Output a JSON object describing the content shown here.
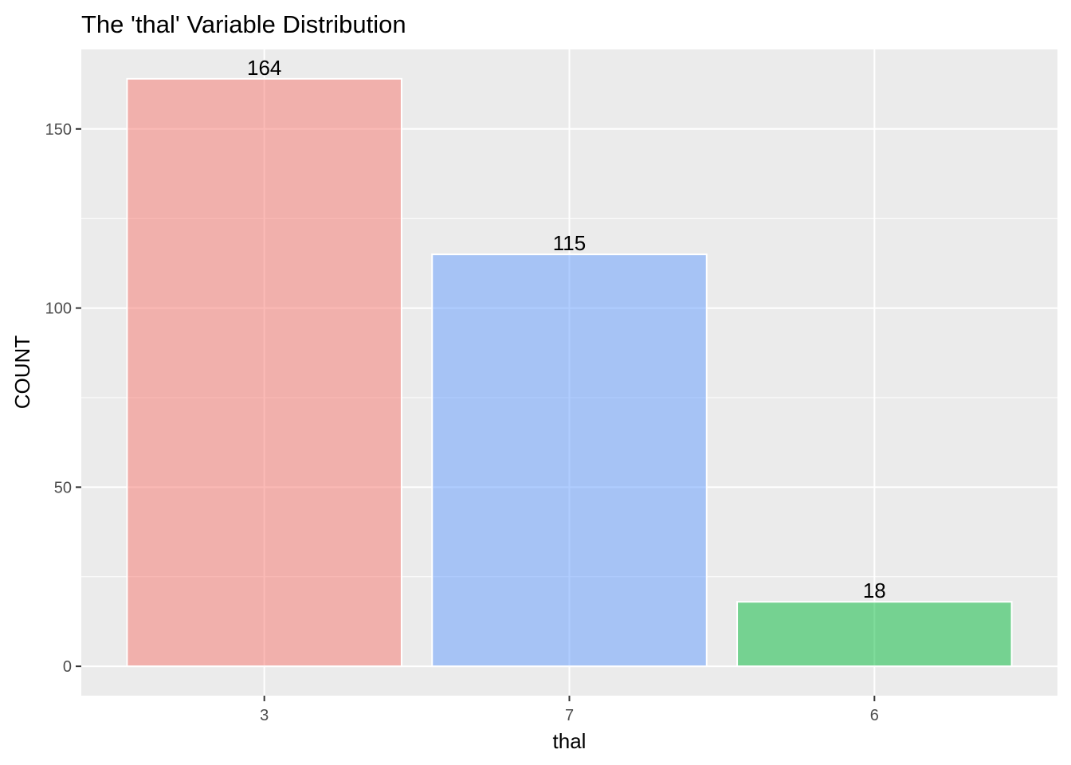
{
  "chart_data": {
    "type": "bar",
    "title": "The 'thal' Variable Distribution",
    "xlabel": "thal",
    "ylabel": "COUNT",
    "categories": [
      "3",
      "7",
      "6"
    ],
    "values": [
      164,
      115,
      18
    ],
    "data_labels": [
      "164",
      "115",
      "18"
    ],
    "bar_colors": [
      "#F8766D",
      "#619CFF",
      "#00BA38"
    ],
    "bar_opacity": 0.5,
    "bar_outline_color": "#ffffff",
    "panel_background": "#EBEBEB",
    "grid_color": "#ffffff",
    "ylim": [
      -8.2,
      172.2
    ],
    "yticks": [
      0,
      50,
      100,
      150
    ],
    "ytick_labels": [
      "0",
      "50",
      "100",
      "150"
    ],
    "y_minor_ticks": [
      25,
      75,
      125
    ],
    "grid": true,
    "legend": "none"
  }
}
